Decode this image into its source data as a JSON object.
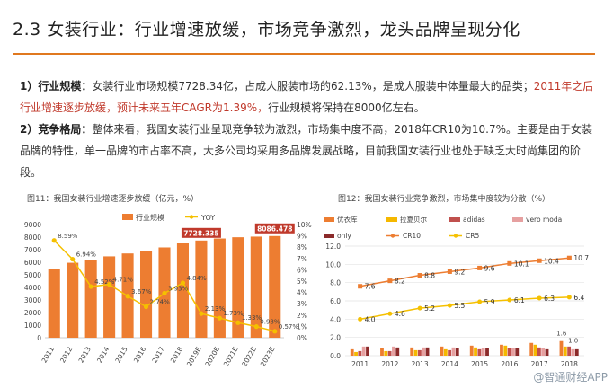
{
  "header": {
    "title": "2.3 女装行业：行业增速放缓，市场竞争激烈，龙头品牌呈现分化"
  },
  "section1": {
    "label": "1）行业规模：",
    "text_a": "女装行业市场规模7728.34亿，占成人服装市场的62.13%，是成人服装中体量最大的品类；",
    "text_red": "2011年之后行业增速逐步放缓，预计未来五年CAGR为1.39%，",
    "text_b": "行业规模将保持在8000亿左右。"
  },
  "section2": {
    "label": "2）竞争格局：",
    "text": "整体来看，我国女装行业呈现竞争较为激烈，市场集中度不高，2018年CR10为10.7%。主要是由于女装品牌的特性，单一品牌的市占率不高，大多公司均采用多品牌发展战略，目前我国女装行业也处于缺乏大时尚集团的阶段。"
  },
  "figure11": {
    "caption": "图11：我国女装行业增速逐步放缓（亿元，%）",
    "chart_data": {
      "type": "bar+line",
      "categories": [
        "2011",
        "2012",
        "2013",
        "2014",
        "2015",
        "2016",
        "2017",
        "2018",
        "2019E",
        "2020E",
        "2021E",
        "2022E",
        "2023E"
      ],
      "series": [
        {
          "name": "行业规模",
          "kind": "bar",
          "axis": "left",
          "color": "#ed7d31",
          "values": [
            5450,
            5960,
            6200,
            6470,
            6700,
            6890,
            7180,
            7500,
            7728.335,
            7890,
            7990,
            8040,
            8086.478
          ]
        },
        {
          "name": "YOY",
          "kind": "line",
          "axis": "right",
          "color": "#f5c000",
          "values": [
            8.59,
            6.94,
            4.52,
            4.71,
            3.67,
            2.74,
            3.93,
            4.84,
            2.13,
            1.73,
            1.33,
            0.98,
            0.57
          ],
          "labels": [
            "8.59%",
            "6.94%",
            "4.52%",
            "4.71%",
            "3.67%",
            "2.74%",
            "3.93%",
            "4.84%",
            "2.13%",
            "1.73%",
            "1.33%",
            "0.98%",
            "0.57%"
          ]
        }
      ],
      "highlight_labels": [
        {
          "index": 8,
          "text": "7728.335"
        },
        {
          "index": 12,
          "text": "8086.478"
        }
      ],
      "ylim_left": [
        0,
        9000
      ],
      "yticks_left": [
        "0",
        "1000",
        "2000",
        "3000",
        "4000",
        "5000",
        "6000",
        "7000",
        "8000",
        "9000"
      ],
      "ylim_right": [
        0,
        10
      ],
      "yticks_right": [
        "0%",
        "1%",
        "2%",
        "3%",
        "4%",
        "5%",
        "6%",
        "7%",
        "8%",
        "9%",
        "10%"
      ],
      "legend": [
        "行业规模",
        "YOY"
      ],
      "legend_position": "top"
    }
  },
  "figure12": {
    "caption": "图12：我国女装行业竞争激烈，市场集中度较为分散（%）",
    "chart_data": {
      "type": "bar+line",
      "categories": [
        "2011",
        "2012",
        "2013",
        "2014",
        "2015",
        "2016",
        "2017",
        "2018"
      ],
      "bar_series": [
        {
          "name": "优衣库",
          "color": "#ed7d31",
          "values": [
            0.7,
            0.8,
            0.9,
            1.0,
            1.1,
            1.2,
            1.4,
            1.6
          ]
        },
        {
          "name": "拉夏贝尔",
          "color": "#f5b800",
          "values": [
            0.4,
            0.5,
            0.6,
            0.7,
            0.9,
            1.1,
            1.2,
            1.0
          ]
        },
        {
          "name": "adidas",
          "color": "#c0504d",
          "values": [
            0.5,
            0.5,
            0.6,
            0.6,
            0.7,
            0.8,
            0.9,
            1.0
          ]
        },
        {
          "name": "vero moda",
          "color": "#e6a0a0",
          "values": [
            1.0,
            1.0,
            0.9,
            0.9,
            0.8,
            0.8,
            0.8,
            0.7
          ]
        },
        {
          "name": "only",
          "color": "#8b2a2a",
          "values": [
            1.0,
            0.9,
            0.9,
            0.8,
            0.8,
            0.8,
            0.7,
            0.7
          ]
        }
      ],
      "line_series": [
        {
          "name": "CR10",
          "color": "#ed7d31",
          "values": [
            7.6,
            8.2,
            8.8,
            9.2,
            9.6,
            10.1,
            10.4,
            10.7
          ],
          "labels": [
            "7.6",
            "8.2",
            "8.8",
            "9.2",
            "9.6",
            "10.1",
            "10.4",
            "10.7"
          ]
        },
        {
          "name": "CR5",
          "color": "#f5c000",
          "values": [
            4.0,
            4.6,
            5.2,
            5.5,
            5.9,
            6.1,
            6.3,
            6.4
          ],
          "labels": [
            "4.0",
            "4.6",
            "5.2",
            "5.5",
            "5.9",
            "6.1",
            "6.3",
            "6.4"
          ]
        }
      ],
      "end_bar_labels": [
        "1.6",
        "1.0"
      ],
      "ylim": [
        0,
        12
      ],
      "yticks": [
        "0.0",
        "2.0",
        "4.0",
        "6.0",
        "8.0",
        "10.0",
        "12.0"
      ],
      "legend": [
        "优衣库",
        "拉夏贝尔",
        "adidas",
        "vero moda",
        "only",
        "CR10",
        "CR5"
      ],
      "legend_position": "top"
    }
  },
  "watermark": "@智通财经APP"
}
